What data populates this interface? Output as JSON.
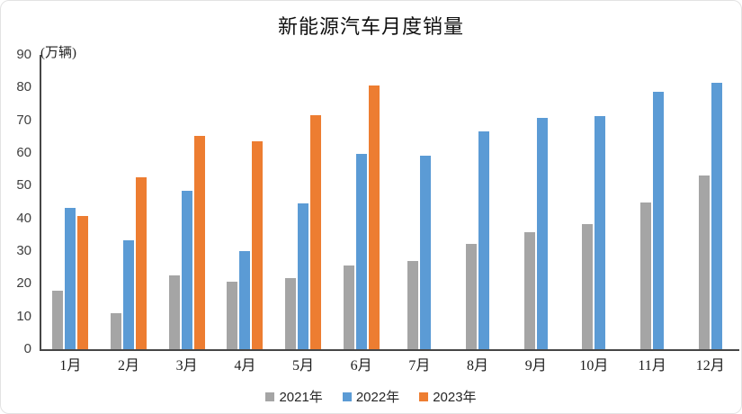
{
  "chart_data": {
    "type": "bar",
    "title": "新能源汽车月度销量",
    "unit_label": "(万辆)",
    "categories": [
      "1月",
      "2月",
      "3月",
      "4月",
      "5月",
      "6月",
      "7月",
      "8月",
      "9月",
      "10月",
      "11月",
      "12月"
    ],
    "series": [
      {
        "name": "2021年",
        "color": "#a5a5a5",
        "values": [
          17.9,
          11.0,
          22.6,
          20.6,
          21.7,
          25.6,
          27.1,
          32.1,
          35.7,
          38.3,
          45.0,
          53.1
        ]
      },
      {
        "name": "2022年",
        "color": "#5b9bd5",
        "values": [
          43.1,
          33.4,
          48.4,
          29.9,
          44.7,
          59.6,
          59.3,
          66.6,
          70.8,
          71.4,
          78.6,
          81.4
        ]
      },
      {
        "name": "2023年",
        "color": "#ed7d31",
        "values": [
          40.8,
          52.5,
          65.3,
          63.6,
          71.7,
          80.6,
          null,
          null,
          null,
          null,
          null,
          null
        ]
      }
    ],
    "xlabel": "",
    "ylabel": "(万辆)",
    "ylim": [
      0,
      90
    ],
    "yticks": [
      0,
      10,
      20,
      30,
      40,
      50,
      60,
      70,
      80,
      90
    ],
    "grid": false,
    "legend_position": "bottom",
    "axis_color": "#464646",
    "background_color": "#ffffff"
  }
}
